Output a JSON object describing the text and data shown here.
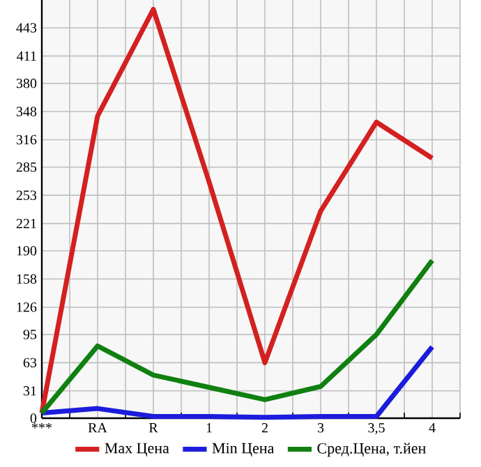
{
  "chart_data": {
    "type": "line",
    "categories": [
      "***",
      "RA",
      "R",
      "1",
      "2",
      "3",
      "3,5",
      "4"
    ],
    "series": [
      {
        "name": "Max Цена",
        "color": "#d42020",
        "values": [
          6,
          343,
          464,
          268,
          63,
          235,
          336,
          295
        ]
      },
      {
        "name": "Min Цена",
        "color": "#1c1cdc",
        "values": [
          6,
          11,
          2,
          2,
          1,
          2,
          2,
          81
        ]
      },
      {
        "name": "Сред.Цена, т.йен",
        "color": "#108010",
        "values": [
          6,
          82,
          49,
          35,
          21,
          36,
          95,
          179
        ]
      }
    ],
    "ylim": [
      0,
      474.6
    ],
    "yticks": [
      0,
      31,
      63,
      95,
      126,
      158,
      190,
      221,
      253,
      285,
      316,
      348,
      380,
      411,
      443
    ],
    "grid": true,
    "legend": "bottom",
    "marker": "none",
    "line_style": "solid"
  }
}
